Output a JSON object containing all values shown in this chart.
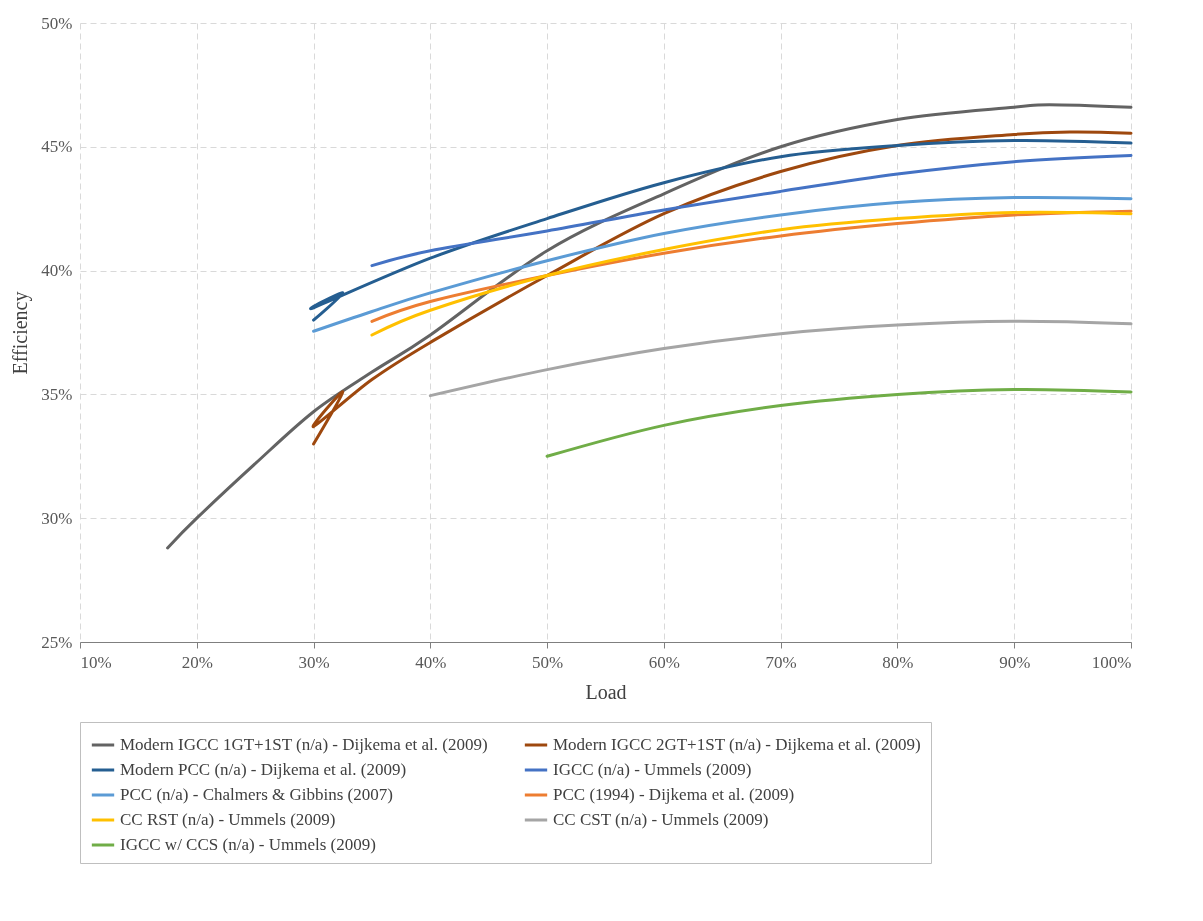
{
  "chart_data": {
    "type": "line",
    "xlabel": "Load",
    "ylabel": "Efficiency",
    "xlim": [
      10,
      100
    ],
    "ylim": [
      25,
      50
    ],
    "xticks": [
      {
        "value": 10,
        "label": "10%"
      },
      {
        "value": 20,
        "label": "20%"
      },
      {
        "value": 30,
        "label": "30%"
      },
      {
        "value": 40,
        "label": "40%"
      },
      {
        "value": 50,
        "label": "50%"
      },
      {
        "value": 60,
        "label": "60%"
      },
      {
        "value": 70,
        "label": "70%"
      },
      {
        "value": 80,
        "label": "80%"
      },
      {
        "value": 90,
        "label": "90%"
      },
      {
        "value": 100,
        "label": "100%"
      }
    ],
    "yticks": [
      {
        "value": 25,
        "label": "25%"
      },
      {
        "value": 30,
        "label": "30%"
      },
      {
        "value": 35,
        "label": "35%"
      },
      {
        "value": 40,
        "label": "40%"
      },
      {
        "value": 45,
        "label": "45%"
      },
      {
        "value": 50,
        "label": "50%"
      }
    ],
    "grid": true,
    "legend": "bottom",
    "marker": "none",
    "line_style": "solid",
    "series": [
      {
        "name": "Modern IGCC 1GT+1ST (n/a) - Dijkema et al. (2009)",
        "color": "#636363",
        "x": [
          17.5,
          20,
          25,
          30,
          35,
          40,
          50,
          60,
          70,
          80,
          90,
          93,
          100
        ],
        "values": [
          28.8,
          30.0,
          32.2,
          34.3,
          35.9,
          37.4,
          40.8,
          43.1,
          45.0,
          46.1,
          46.6,
          46.7,
          46.6
        ]
      },
      {
        "name": "Modern IGCC 2GT+1ST (n/a) - Dijkema et al. (2009)",
        "color": "#9e480e",
        "x": [
          30,
          32.5,
          30,
          35,
          40,
          50,
          60,
          70,
          80,
          90,
          95,
          100
        ],
        "values": [
          33.0,
          35.1,
          33.7,
          35.6,
          37.1,
          39.8,
          42.3,
          44.0,
          45.05,
          45.5,
          45.6,
          45.55
        ]
      },
      {
        "name": "Modern PCC (n/a) - Dijkema et al. (2009)",
        "color": "#255e91",
        "x": [
          30,
          32.5,
          30,
          40,
          50,
          60,
          70,
          80,
          90,
          100
        ],
        "values": [
          38.0,
          39.1,
          38.5,
          40.5,
          42.1,
          43.55,
          44.6,
          45.05,
          45.25,
          45.15
        ]
      },
      {
        "name": "IGCC (n/a) - Ummels (2009)",
        "color": "#4472c4",
        "x": [
          35,
          40,
          50,
          60,
          70,
          80,
          90,
          100
        ],
        "values": [
          40.2,
          40.8,
          41.6,
          42.45,
          43.2,
          43.9,
          44.4,
          44.65
        ]
      },
      {
        "name": "PCC (n/a) - Chalmers & Gibbins (2007)",
        "color": "#5b9bd5",
        "x": [
          30,
          35,
          40,
          50,
          60,
          70,
          80,
          90,
          100
        ],
        "values": [
          37.55,
          38.35,
          39.1,
          40.4,
          41.5,
          42.25,
          42.75,
          42.95,
          42.9
        ]
      },
      {
        "name": "PCC (1994) - Dijkema et al. (2009)",
        "color": "#ed7d31",
        "x": [
          35,
          40,
          50,
          60,
          70,
          80,
          90,
          100
        ],
        "values": [
          37.95,
          38.75,
          39.8,
          40.7,
          41.4,
          41.9,
          42.25,
          42.4
        ]
      },
      {
        "name": "CC RST (n/a) - Ummels (2009)",
        "color": "#ffc000",
        "x": [
          35,
          40,
          50,
          60,
          70,
          80,
          90,
          100
        ],
        "values": [
          37.4,
          38.4,
          39.8,
          40.85,
          41.65,
          42.1,
          42.35,
          42.3
        ]
      },
      {
        "name": "CC CST (n/a) - Ummels (2009)",
        "color": "#a5a5a5",
        "x": [
          40,
          50,
          60,
          70,
          80,
          90,
          100
        ],
        "values": [
          34.95,
          36.0,
          36.85,
          37.45,
          37.8,
          37.95,
          37.85
        ]
      },
      {
        "name": "IGCC w/ CCS (n/a) - Ummels (2009)",
        "color": "#70ad47",
        "x": [
          50,
          60,
          70,
          80,
          90,
          100
        ],
        "values": [
          32.5,
          33.75,
          34.55,
          35.0,
          35.2,
          35.1
        ]
      }
    ]
  }
}
